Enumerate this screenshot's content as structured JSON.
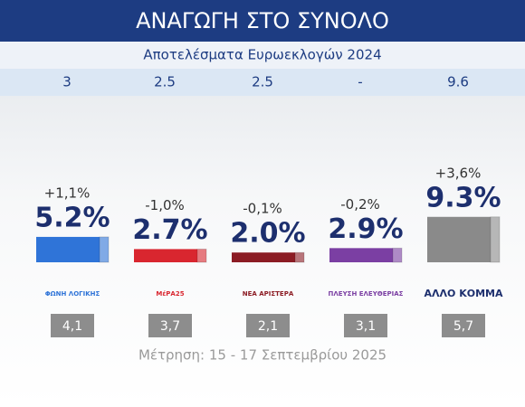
{
  "chart_data": {
    "type": "bar",
    "title": "ΑΝΑΓΩΓΗ ΣΤΟ ΣΥΝΟΛΟ",
    "subtitle": "Αποτελέσματα Ευρωεκλογών 2024",
    "footer": "Μέτρηση: 15 - 17 Σεπτεμβρίου 2025",
    "categories": [
      "ΦΩΝΗ ΛΟΓΙΚΗΣ",
      "ΜέΡΑ25",
      "ΝΕΑ ΑΡΙΣΤΕΡΑ",
      "ΠΛΕΥΣΗ ΕΛΕΥΘΕΡΙΑΣ",
      "ΑΛΛΟ ΚΟΜΜΑ"
    ],
    "values": [
      5.2,
      2.7,
      2.0,
      2.9,
      9.3
    ],
    "value_labels": [
      "5.2%",
      "2.7%",
      "2.0%",
      "2.9%",
      "9.3%"
    ],
    "colors": [
      "#2f74d8",
      "#d9262f",
      "#8c1c24",
      "#7b3fa3",
      "#8a8a8a"
    ],
    "change": {
      "values": [
        1.1,
        -1.0,
        -0.1,
        -0.2,
        3.6
      ],
      "value_labels": [
        "+1,1%",
        "-1,0%",
        "-0,1%",
        "-0,2%",
        "+3,6%"
      ]
    },
    "euro_results": {
      "values": [
        3,
        2.5,
        2.5,
        null,
        9.6
      ],
      "value_labels": [
        "3",
        "2.5",
        "2.5",
        "-",
        "9.6"
      ]
    },
    "previous": {
      "values": [
        4.1,
        3.7,
        2.1,
        3.1,
        5.7
      ],
      "value_labels": [
        "4,1",
        "3,7",
        "2,1",
        "3,1",
        "5,7"
      ]
    }
  }
}
